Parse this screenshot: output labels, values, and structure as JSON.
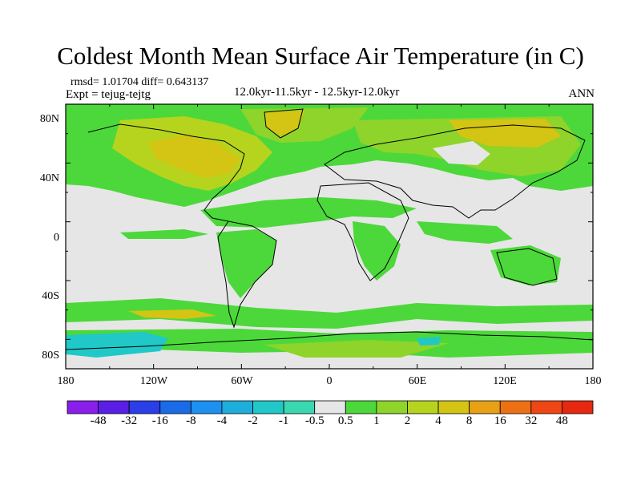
{
  "title": "Coldest Month Mean Surface Air Temperature (in C)",
  "stats": {
    "rmsd_text": "rmsd= 1.01704",
    "diff_text": "diff= 0.643137"
  },
  "expt": "Expt = tejug-tejtg",
  "period": "12.0kyr-11.5kyr - 12.5kyr-12.0kyr",
  "season": "ANN",
  "axes": {
    "lat_labels": [
      "80N",
      "40N",
      "0",
      "40S",
      "80S"
    ],
    "lon_labels": [
      "180",
      "120W",
      "60W",
      "0",
      "60E",
      "120E",
      "180"
    ]
  },
  "colorbar": {
    "labels": [
      "-48",
      "-32",
      "-16",
      "-8",
      "-4",
      "-2",
      "-1",
      "-0.5",
      "0.5",
      "1",
      "2",
      "4",
      "8",
      "16",
      "32",
      "48"
    ],
    "colors": [
      "#8a1eeb",
      "#5a1ee6",
      "#2a3fe8",
      "#1a6be8",
      "#1e90f0",
      "#1eaedc",
      "#20c8c8",
      "#3ad8b0",
      "#e6e6e6",
      "#4cd83a",
      "#8ed42a",
      "#b6d41e",
      "#d4c414",
      "#e8a014",
      "#ee7014",
      "#ee4614",
      "#e62810"
    ]
  },
  "colors": {
    "neutral": "#e6e6e6",
    "green": "#4cd83a",
    "lightgreen": "#8ed42a",
    "yellowgreen": "#b6d41e",
    "yellow": "#d4c414",
    "orange": "#e8a014",
    "cyan": "#20c8c8",
    "blue": "#1e90f0"
  }
}
